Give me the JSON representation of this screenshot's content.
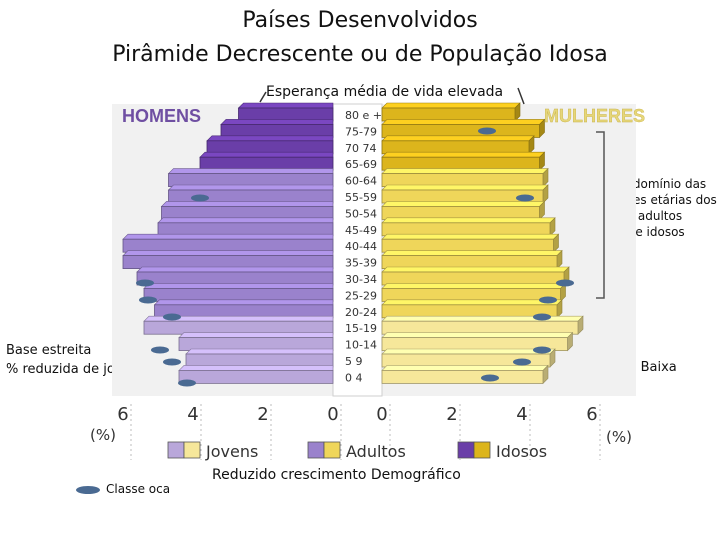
{
  "title_line1": "Países Desenvolvidos",
  "title_line2": "Pirâmide Decrescente ou de População Idosa",
  "annotations": {
    "top": "Esperança média de vida elevada",
    "right_lines": [
      "Predomínio das",
      "classes etárias dos",
      "adultos",
      "e idosos"
    ],
    "left_line1": "Base estreita",
    "left_line2": "% reduzida de jovens",
    "right_bottom": "Natalidade Baixa",
    "bottom": "Reduzido crescimento Demográfico"
  },
  "legend_bottom_left": "Classe oca",
  "chart_data": {
    "type": "bar",
    "orientation": "horizontal-pyramid",
    "left_label": "HOMENS",
    "right_label": "MULHERES",
    "unit_left": "(%)",
    "unit_right": "(%)",
    "x_ticks_left": [
      "6",
      "4",
      "2",
      "0"
    ],
    "x_ticks_right": [
      "0",
      "2",
      "4",
      "6"
    ],
    "xlim": [
      0,
      7
    ],
    "categories": [
      "80 e +",
      "75-79",
      "70 74",
      "65-69",
      "60-64",
      "55-59",
      "50-54",
      "45-49",
      "40-44",
      "35-39",
      "30-34",
      "25-29",
      "20-24",
      "15-19",
      "10-14",
      "5 9",
      "0 4"
    ],
    "groups": [
      "idosos",
      "idosos",
      "idosos",
      "idosos",
      "adultos",
      "adultos",
      "adultos",
      "adultos",
      "adultos",
      "adultos",
      "adultos",
      "adultos",
      "adultos",
      "jovens",
      "jovens",
      "jovens",
      "jovens"
    ],
    "series": [
      {
        "name": "HOMENS",
        "values": [
          2.7,
          3.2,
          3.6,
          3.8,
          4.7,
          4.7,
          4.9,
          5.0,
          6.0,
          6.0,
          5.6,
          5.4,
          5.1,
          5.4,
          4.4,
          4.2,
          4.4
        ]
      },
      {
        "name": "MULHERES",
        "values": [
          3.8,
          4.5,
          4.2,
          4.5,
          4.6,
          4.6,
          4.5,
          4.8,
          4.9,
          5.0,
          5.2,
          5.1,
          5.0,
          5.6,
          5.3,
          4.8,
          4.6
        ]
      }
    ],
    "legend": [
      "Jovens",
      "Adultos",
      "Idosos"
    ],
    "colors": {
      "men_jovens": "#b9a7da",
      "men_adultos": "#9a82cc",
      "men_idosos": "#6a3ea8",
      "women_jovens": "#f6e79a",
      "women_adultos": "#efd65a",
      "women_idosos": "#dcb51c",
      "men_label": "#6f4fa2",
      "women_label": "#e6d67a",
      "marker": "#4a6a92"
    }
  }
}
